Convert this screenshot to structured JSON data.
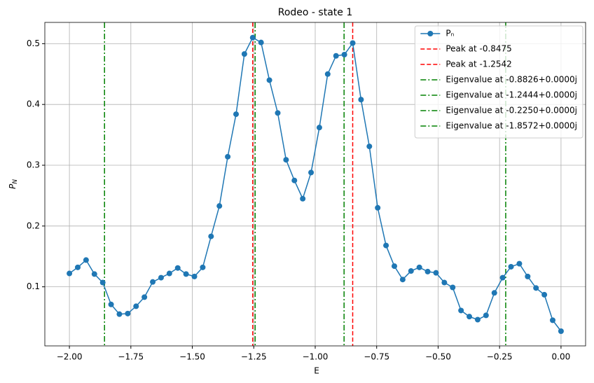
{
  "chart_data": {
    "type": "line",
    "title": "Rodeo - state 1",
    "xlabel": "E",
    "ylabel": [
      "P",
      "N"
    ],
    "x": [
      -2.0,
      -1.9661,
      -1.9322,
      -1.8983,
      -1.8644,
      -1.8305,
      -1.7966,
      -1.7627,
      -1.7288,
      -1.6949,
      -1.661,
      -1.6271,
      -1.5932,
      -1.5593,
      -1.5254,
      -1.4915,
      -1.4576,
      -1.4237,
      -1.3898,
      -1.3559,
      -1.322,
      -1.2881,
      -1.2542,
      -1.2203,
      -1.1864,
      -1.1525,
      -1.1186,
      -1.0847,
      -1.0508,
      -1.0169,
      -0.9831,
      -0.9492,
      -0.9153,
      -0.8814,
      -0.8475,
      -0.8136,
      -0.7797,
      -0.7458,
      -0.7119,
      -0.678,
      -0.6441,
      -0.6102,
      -0.5763,
      -0.5424,
      -0.5085,
      -0.4746,
      -0.4407,
      -0.4068,
      -0.3729,
      -0.339,
      -0.3051,
      -0.2712,
      -0.2373,
      -0.2034,
      -0.1695,
      -0.1356,
      -0.1017,
      -0.0678,
      -0.0339,
      0.0
    ],
    "series": [
      {
        "name": "Pₙ",
        "color": "#1f77b4",
        "values": [
          0.122,
          0.132,
          0.144,
          0.121,
          0.107,
          0.071,
          0.055,
          0.056,
          0.068,
          0.083,
          0.108,
          0.115,
          0.122,
          0.131,
          0.121,
          0.117,
          0.132,
          0.183,
          0.233,
          0.314,
          0.384,
          0.483,
          0.51,
          0.502,
          0.44,
          0.386,
          0.309,
          0.275,
          0.245,
          0.288,
          0.362,
          0.45,
          0.48,
          0.482,
          0.501,
          0.408,
          0.331,
          0.23,
          0.168,
          0.134,
          0.112,
          0.126,
          0.132,
          0.125,
          0.123,
          0.107,
          0.099,
          0.061,
          0.051,
          0.046,
          0.053,
          0.09,
          0.115,
          0.133,
          0.138,
          0.117,
          0.098,
          0.087,
          0.045,
          0.027
        ]
      }
    ],
    "vlines": [
      {
        "name": "Peak at -0.8475",
        "x": -0.8475,
        "color": "#ff0000",
        "style": "dashed"
      },
      {
        "name": "Peak at -1.2542",
        "x": -1.2542,
        "color": "#ff0000",
        "style": "dashed"
      },
      {
        "name": "Eigenvalue at -0.8826+0.0000j",
        "x": -0.8826,
        "color": "#008000",
        "style": "dashdot"
      },
      {
        "name": "Eigenvalue at -1.2444+0.0000j",
        "x": -1.2444,
        "color": "#008000",
        "style": "dashdot"
      },
      {
        "name": "Eigenvalue at -0.2250+0.0000j",
        "x": -0.225,
        "color": "#008000",
        "style": "dashdot"
      },
      {
        "name": "Eigenvalue at -1.8572+0.0000j",
        "x": -1.8572,
        "color": "#008000",
        "style": "dashdot"
      }
    ],
    "xlim": [
      -2.1,
      0.1
    ],
    "ylim": [
      0.0028,
      0.535
    ],
    "xticks": [
      {
        "value": -2,
        "label": "−2.00"
      },
      {
        "value": -1.75,
        "label": "−1.75"
      },
      {
        "value": -1.5,
        "label": "−1.50"
      },
      {
        "value": -1.25,
        "label": "−1.25"
      },
      {
        "value": -1,
        "label": "−1.00"
      },
      {
        "value": -0.75,
        "label": "−0.75"
      },
      {
        "value": -0.5,
        "label": "−0.50"
      },
      {
        "value": -0.25,
        "label": "−0.25"
      },
      {
        "value": 0,
        "label": "0.00"
      }
    ],
    "yticks": [
      0.1,
      0.2,
      0.3,
      0.4,
      0.5
    ],
    "grid": true,
    "legend": "upper right"
  }
}
